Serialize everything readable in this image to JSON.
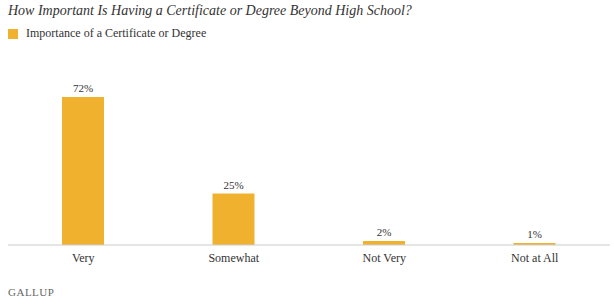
{
  "chart_data": {
    "type": "bar",
    "title": "How Important Is Having a Certificate or Degree Beyond High School?",
    "categories": [
      "Very",
      "Somewhat",
      "Not Very",
      "Not at All"
    ],
    "series": [
      {
        "name": "Importance of a Certificate or Degree",
        "color": "#efb12e",
        "values": [
          72,
          25,
          2,
          1
        ],
        "value_labels": [
          "72%",
          "25%",
          "2%",
          "1%"
        ]
      }
    ],
    "data_labels": true,
    "tick_labels": "x",
    "legend": "top left",
    "grid": false,
    "source": "GALLUP"
  }
}
